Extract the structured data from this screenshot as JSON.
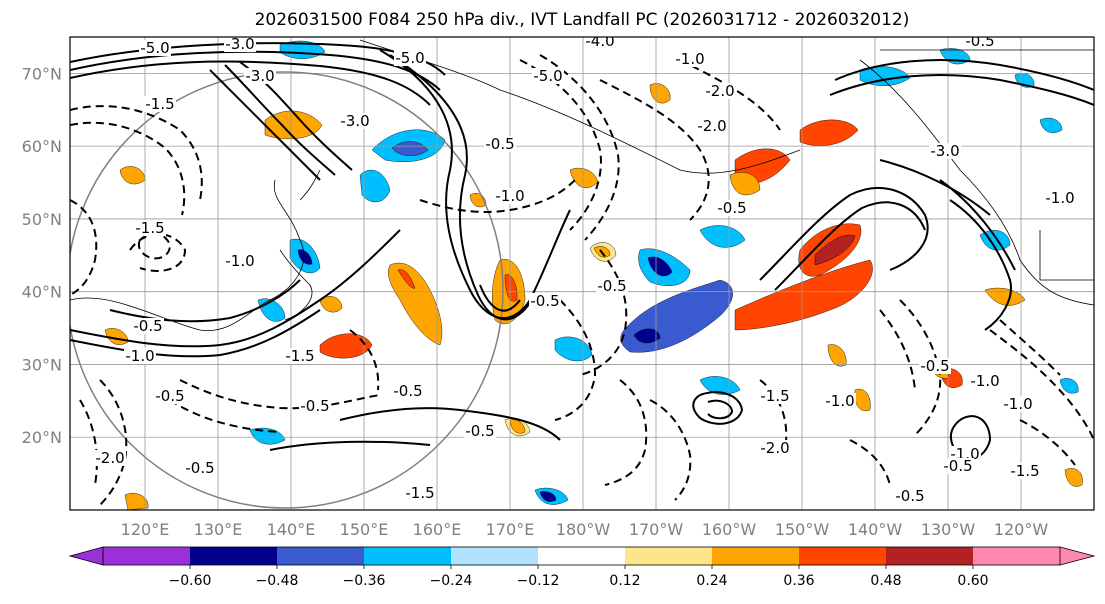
{
  "chart_data": {
    "type": "contour-map",
    "title": "2026031500 F084 250 hPa div., IVT Landfall PC (2026031712 - 2026032012)",
    "lon_ticks": [
      "120°E",
      "130°E",
      "140°E",
      "150°E",
      "160°E",
      "170°E",
      "180°W",
      "170°W",
      "160°W",
      "150°W",
      "140°W",
      "130°W",
      "120°W"
    ],
    "lat_ticks": [
      "70°N",
      "60°N",
      "50°N",
      "40°N",
      "30°N",
      "20°N"
    ],
    "lat_range": [
      10,
      75
    ],
    "colorbar": {
      "levels": [
        -0.6,
        -0.48,
        -0.36,
        -0.24,
        -0.12,
        0.12,
        0.24,
        0.36,
        0.48,
        0.6
      ],
      "labels": [
        "−0.60",
        "−0.48",
        "−0.36",
        "−0.24",
        "−0.12",
        "0.12",
        "0.24",
        "0.36",
        "0.48",
        "0.60"
      ],
      "colors": [
        "#9b30d8",
        "#00008b",
        "#3a5bd0",
        "#00bfff",
        "#b0e2ff",
        "#ffffff",
        "#fde68a",
        "#ffa500",
        "#ff4500",
        "#b22222",
        "#ff88b0"
      ]
    },
    "contour_labels": [
      "-5.0",
      "-3.0",
      "-5.0",
      "-4.0",
      "-5.0",
      "-1.0",
      "-2.0",
      "-3.0",
      "-0.5",
      "-2.0",
      "-3.0",
      "-1.5",
      "-1.5",
      "-0.5",
      "-1.0",
      "-1.0",
      "-0.5",
      "-0.5",
      "-0.5",
      "-0.5",
      "-0.5",
      "-2.0",
      "-1.5",
      "-1.0",
      "-0.5",
      "-1.5",
      "-2.0",
      "-0.5",
      "-0.5",
      "-3.0",
      "-0.5",
      "-1.0",
      "-1.0",
      "-0.5",
      "-1.0",
      "-1.5",
      "-1.0",
      "-0.5",
      "-1.0",
      "-1.5",
      "-0.5"
    ]
  }
}
